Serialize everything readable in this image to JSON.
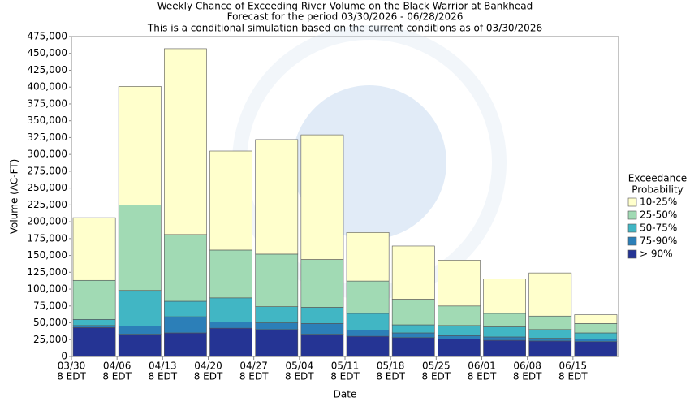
{
  "chart_data": {
    "type": "bar",
    "stacked": true,
    "title": "Weekly Chance of Exceeding River Volume on the Black Warrior at Bankhead",
    "subtitle": "Forecast for the period 03/30/2026 - 06/28/2026",
    "subtitle2": "This is a conditional simulation based on the current conditions as of 03/30/2026",
    "x_label": "Date",
    "y_label": "Volume (AC-FT)",
    "legend_title": [
      "Exceedance",
      "Probability"
    ],
    "legend_position": "right",
    "categories": [
      "03/30",
      "04/06",
      "04/13",
      "04/20",
      "04/27",
      "05/04",
      "05/11",
      "05/18",
      "05/25",
      "06/01",
      "06/08",
      "06/15"
    ],
    "category_sublabel": "8 EDT",
    "series": [
      {
        "name": "> 90%",
        "color": "#253494",
        "values": [
          43000,
          33000,
          35000,
          42000,
          40000,
          33000,
          30000,
          28000,
          26000,
          24000,
          23000,
          22000
        ]
      },
      {
        "name": "75-90%",
        "color": "#2c7fb8",
        "values": [
          3000,
          12000,
          24000,
          9000,
          10000,
          16000,
          9000,
          7000,
          5000,
          5000,
          4000,
          4000
        ]
      },
      {
        "name": "50-75%",
        "color": "#41b6c4",
        "values": [
          9000,
          53000,
          23000,
          36000,
          24000,
          24000,
          25000,
          12000,
          15000,
          15000,
          13000,
          9000
        ]
      },
      {
        "name": "25-50%",
        "color": "#a1dab4",
        "values": [
          58000,
          127000,
          99000,
          71000,
          78000,
          71000,
          48000,
          38000,
          29000,
          20000,
          20000,
          14000
        ]
      },
      {
        "name": "10-25%",
        "color": "#ffffcc",
        "values": [
          93000,
          176000,
          276000,
          147000,
          170000,
          185000,
          72000,
          79000,
          68000,
          51000,
          64000,
          13000
        ]
      }
    ],
    "ylim": [
      0,
      475000
    ],
    "yticks": [
      0,
      {
        "value": 25000,
        "label": "25,000"
      },
      {
        "value": 50000,
        "label": "50,000"
      },
      {
        "value": 75000,
        "label": "75,000"
      },
      {
        "value": 100000,
        "label": "100,000"
      },
      {
        "value": 125000,
        "label": "125,000"
      },
      {
        "value": 150000,
        "label": "150,000"
      },
      {
        "value": 175000,
        "label": "175,000"
      },
      {
        "value": 200000,
        "label": "200,000"
      },
      {
        "value": 225000,
        "label": "225,000"
      },
      {
        "value": 250000,
        "label": "250,000"
      },
      {
        "value": 275000,
        "label": "275,000"
      },
      {
        "value": 300000,
        "label": "300,000"
      },
      {
        "value": 325000,
        "label": "325,000"
      },
      {
        "value": 350000,
        "label": "350,000"
      },
      {
        "value": 375000,
        "label": "375,000"
      },
      {
        "value": 400000,
        "label": "400,000"
      },
      {
        "value": 425000,
        "label": "425,000"
      },
      {
        "value": 450000,
        "label": "450,000"
      },
      {
        "value": 475000,
        "label": "475,000"
      }
    ],
    "grid": false
  }
}
